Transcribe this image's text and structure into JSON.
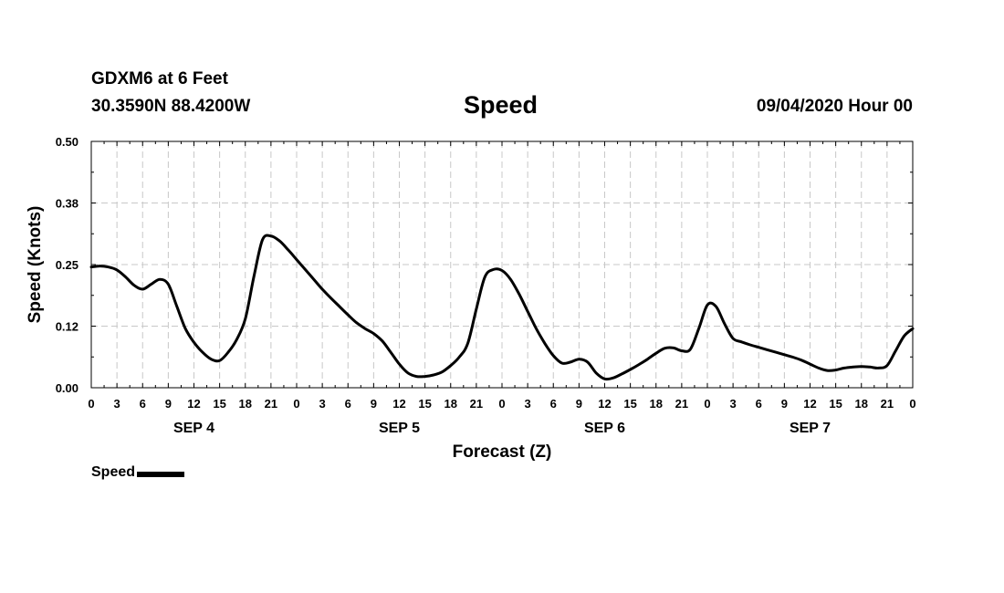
{
  "header": {
    "station": "GDXM6 at 6 Feet",
    "coords": "30.3590N 88.4200W",
    "title": "Speed",
    "datetime": "09/04/2020 Hour 00"
  },
  "chart_data": {
    "type": "line",
    "title": "Speed",
    "xlabel": "Forecast (Z)",
    "ylabel": "Speed (Knots)",
    "xlim": [
      0,
      96
    ],
    "ylim": [
      0,
      0.5
    ],
    "y_ticks": [
      "0.00",
      "0.12",
      "0.25",
      "0.38",
      "0.50"
    ],
    "x_tick_labels": [
      "0",
      "3",
      "6",
      "9",
      "12",
      "15",
      "18",
      "21",
      "0",
      "3",
      "6",
      "9",
      "12",
      "15",
      "18",
      "21",
      "0",
      "3",
      "6",
      "9",
      "12",
      "15",
      "18",
      "21",
      "0",
      "3",
      "6",
      "9",
      "12",
      "15",
      "18",
      "21",
      "0"
    ],
    "day_labels": [
      "SEP 4",
      "SEP 5",
      "SEP 6",
      "SEP 7"
    ],
    "grid": true,
    "legend": {
      "placement": "bottom-left",
      "entries": [
        "Speed"
      ]
    },
    "series": [
      {
        "name": "Speed",
        "color": "#000000",
        "x": [
          0,
          1,
          2,
          3,
          4,
          5,
          6,
          7,
          8,
          9,
          10,
          11,
          12,
          13,
          14,
          15,
          16,
          17,
          18,
          19,
          20,
          21,
          22,
          23,
          24,
          25,
          26,
          27,
          28,
          29,
          30,
          31,
          32,
          33,
          34,
          35,
          36,
          37,
          38,
          39,
          40,
          41,
          42,
          43,
          44,
          45,
          46,
          47,
          48,
          49,
          50,
          51,
          52,
          53,
          54,
          55,
          56,
          57,
          58,
          59,
          60,
          61,
          62,
          63,
          64,
          65,
          66,
          67,
          68,
          69,
          70,
          71,
          72,
          73,
          74,
          75,
          76,
          77,
          78,
          79,
          80,
          81,
          82,
          83,
          84,
          85,
          86,
          87,
          88,
          89,
          90,
          91,
          92,
          93,
          94,
          95,
          96
        ],
        "y": [
          0.245,
          0.247,
          0.245,
          0.239,
          0.225,
          0.208,
          0.2,
          0.21,
          0.22,
          0.21,
          0.165,
          0.12,
          0.092,
          0.072,
          0.058,
          0.055,
          0.072,
          0.098,
          0.14,
          0.225,
          0.3,
          0.308,
          0.298,
          0.28,
          0.26,
          0.24,
          0.22,
          0.2,
          0.182,
          0.165,
          0.148,
          0.132,
          0.12,
          0.11,
          0.095,
          0.072,
          0.048,
          0.03,
          0.023,
          0.023,
          0.026,
          0.032,
          0.045,
          0.062,
          0.09,
          0.16,
          0.225,
          0.24,
          0.238,
          0.22,
          0.19,
          0.155,
          0.12,
          0.09,
          0.065,
          0.05,
          0.052,
          0.058,
          0.052,
          0.03,
          0.018,
          0.02,
          0.028,
          0.037,
          0.047,
          0.058,
          0.07,
          0.08,
          0.081,
          0.075,
          0.078,
          0.12,
          0.168,
          0.165,
          0.13,
          0.1,
          0.093,
          0.087,
          0.082,
          0.077,
          0.072,
          0.067,
          0.062,
          0.056,
          0.048,
          0.04,
          0.035,
          0.036,
          0.04,
          0.042,
          0.043,
          0.042,
          0.04,
          0.045,
          0.075,
          0.105,
          0.12
        ]
      }
    ]
  },
  "legend": {
    "label": "Speed"
  }
}
